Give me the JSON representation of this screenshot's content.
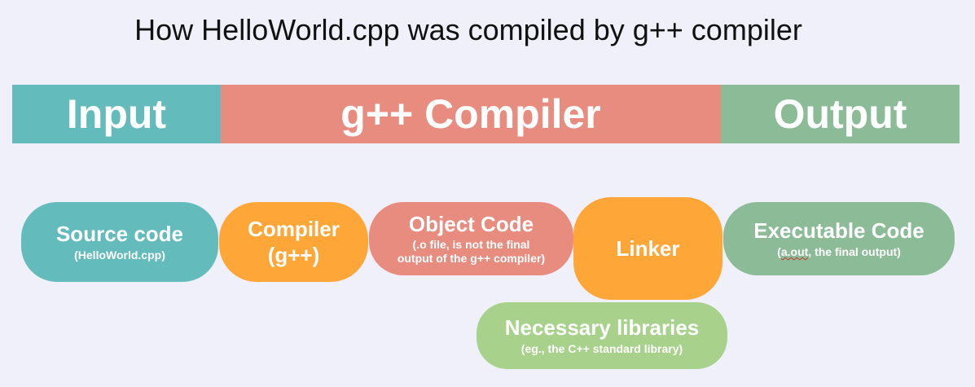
{
  "title": "How HelloWorld.cpp was compiled by g++ compiler",
  "colors": {
    "background": "#eff0fa",
    "input": "#63bcbb",
    "compiler_band": "#e98c80",
    "output": "#8cbb98",
    "compiler_node": "#fea637",
    "object_node": "#e98c80",
    "libraries_node": "#a8d28b"
  },
  "stages": {
    "input": "Input",
    "compiler": "g++ Compiler",
    "output": "Output"
  },
  "nodes": {
    "source": {
      "label": "Source code",
      "sub": "(HelloWorld.cpp)"
    },
    "compiler": {
      "label_line1": "Compiler",
      "label_line2": "(g++)"
    },
    "object": {
      "label": "Object Code",
      "sub_line1": "(.o file, is not the final",
      "sub_line2": "output of the g++ compiler)"
    },
    "linker": {
      "label": "Linker"
    },
    "executable": {
      "label": "Executable Code",
      "sub_part1": "(",
      "sub_part2": "a.out",
      "sub_part3": ", the final output)"
    },
    "libraries": {
      "label": "Necessary libraries",
      "sub": "(eg., the C++ standard library)"
    }
  }
}
